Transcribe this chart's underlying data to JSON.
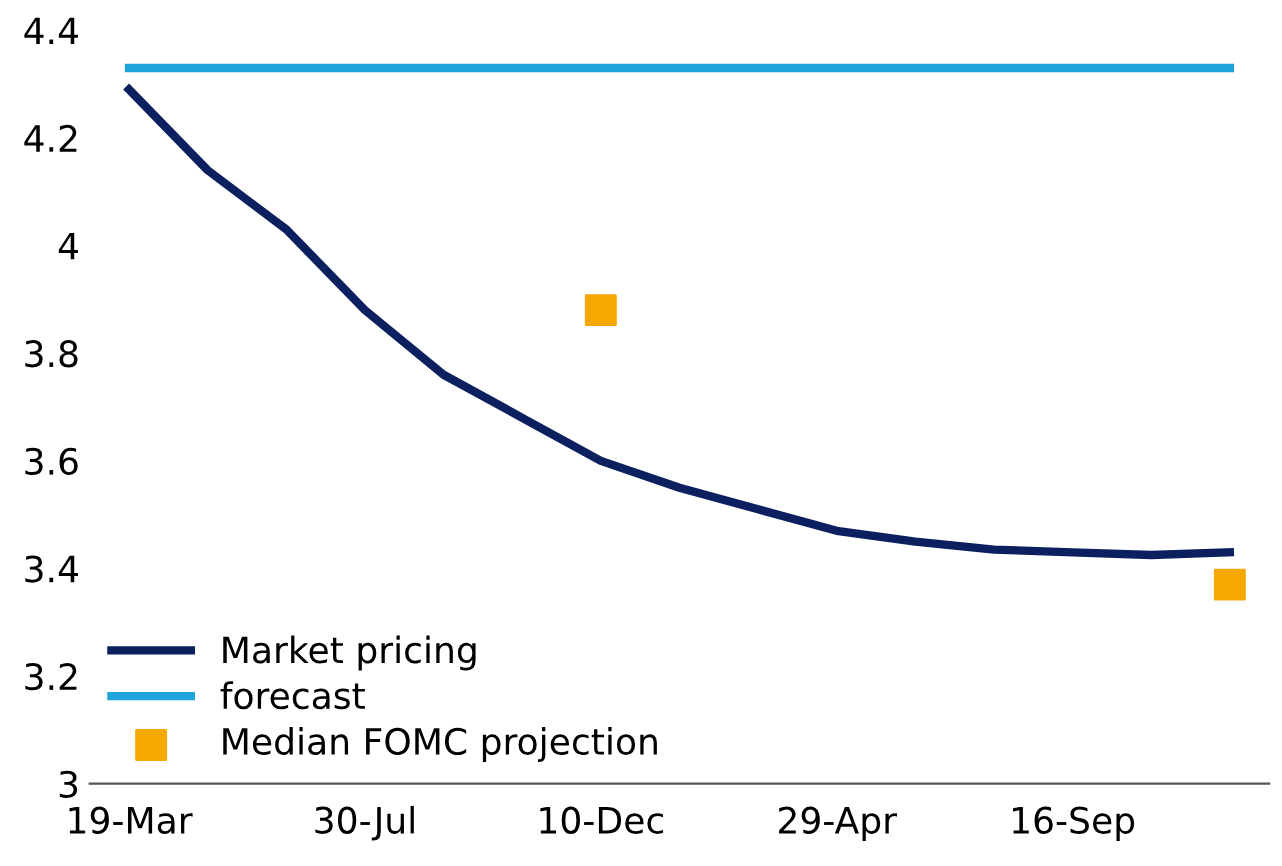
{
  "chart_data": {
    "type": "line",
    "categories": [
      "19-Mar",
      null,
      null,
      "30-Jul",
      null,
      null,
      "10-Dec",
      null,
      null,
      "29-Apr",
      null,
      null,
      "16-Sep",
      null,
      null
    ],
    "series": [
      {
        "name": "Market pricing",
        "color": "#0c2060",
        "values": [
          4.29,
          4.14,
          4.03,
          3.88,
          3.76,
          3.68,
          3.6,
          3.55,
          3.51,
          3.47,
          3.45,
          3.435,
          3.43,
          3.425,
          3.43
        ]
      },
      {
        "name": "forecast",
        "color": "#1ea4dc",
        "values": [
          4.33,
          4.33,
          4.33,
          4.33,
          4.33,
          4.33,
          4.33,
          4.33,
          4.33,
          4.33,
          4.33,
          4.33,
          4.33,
          4.33,
          4.33
        ]
      },
      {
        "name": "Median FOMC projection",
        "type": "scatter",
        "marker": "square",
        "color": "#f5a800",
        "values": [
          null,
          null,
          null,
          null,
          null,
          null,
          3.88,
          null,
          null,
          null,
          null,
          null,
          null,
          null,
          3.37
        ]
      }
    ],
    "ylim": [
      3,
      4.4
    ],
    "yticks": [
      3,
      3.2,
      3.4,
      3.6,
      3.8,
      4,
      4.2,
      4.4
    ],
    "grid": false,
    "legend": "bottom left"
  }
}
